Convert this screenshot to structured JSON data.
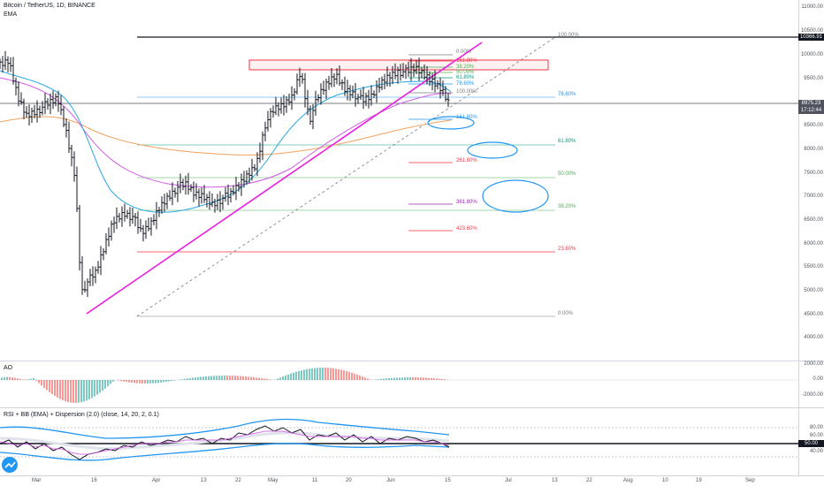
{
  "header": {
    "symbol_title": "Bitcoin / TetherUS, 1D, BINANCE",
    "indicator": "EMA"
  },
  "price_axis": {
    "ticks": [
      "11000.00",
      "10500.00",
      "10000.00",
      "9500.00",
      "9000.00",
      "8500.00",
      "8000.00",
      "7500.00",
      "7000.00",
      "6500.00",
      "6000.00",
      "5500.00",
      "5000.00",
      "4500.00",
      "4000.00"
    ]
  },
  "price_tags": {
    "high": "10366.91",
    "last": "8975.23",
    "countdown": "17:12:44"
  },
  "fib_main": {
    "l100": "100.00%",
    "l786": "78.60%",
    "l618": "61.80%",
    "l50": "50.00%",
    "l382": "38.20%",
    "l236": "23.60%",
    "l0": "0.00%"
  },
  "fib_ext": {
    "l0": "0.00%",
    "l1618a": "161.80%",
    "l382": "38.20%",
    "l50": "50.00%",
    "l618": "61.80%",
    "l786": "78.60%",
    "l100": "100.00%",
    "l1618b": "161.80%",
    "l2618": "261.80%",
    "l3618": "361.80%",
    "l4236": "423.60%"
  },
  "ao": {
    "title": "AO",
    "ticks": [
      "2000.00",
      "0.00",
      "-2000.00"
    ]
  },
  "rsi": {
    "title": "RSI + BB (EMA) + Dispersion (2.0) (close, 14, 20, 2, 0.1)",
    "ticks": [
      "80.00",
      "60.00",
      "50.00",
      "40.00"
    ]
  },
  "time_axis": {
    "labels": [
      "Mar",
      "16",
      "Apr",
      "13",
      "22",
      "May",
      "11",
      "20",
      "Jun",
      "15",
      "Jul",
      "13",
      "22",
      "Aug",
      "10",
      "19",
      "Sep"
    ]
  },
  "colors": {
    "fib_red": "#f23645",
    "fib_green": "#4caf50",
    "fib_teal": "#089981",
    "fib_blue": "#2196f3",
    "fib_purple": "#9c27b0",
    "trend_magenta": "#e91ee0",
    "ema_blue": "#2ca8e0",
    "ema_orange": "#f0a160",
    "ema_pink": "#d05ce3"
  }
}
